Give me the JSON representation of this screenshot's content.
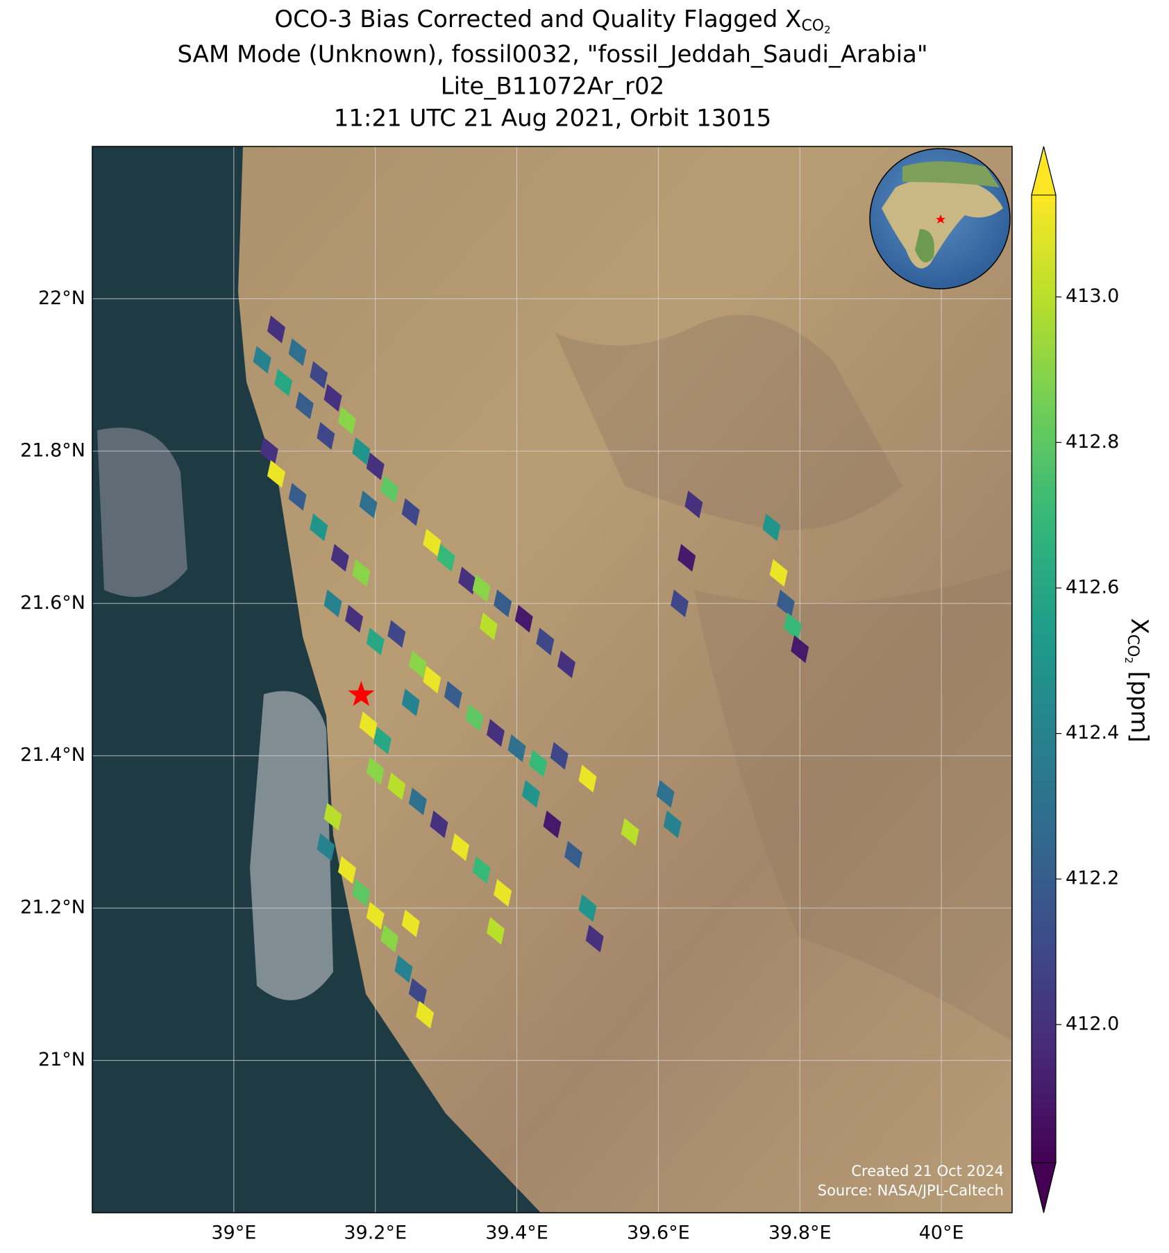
{
  "chart_data": {
    "type": "map",
    "title": [
      "OCO-3 Bias Corrected and Quality Flagged X",
      "SAM Mode (Unknown), fossil0032, \"fossil_Jeddah_Saudi_Arabia\"",
      "Lite_B11072Ar_r02",
      "11:21 UTC 21 Aug 2021, Orbit 13015"
    ],
    "title_subscript": [
      "CO",
      "2"
    ],
    "xlim": [
      38.8,
      40.1
    ],
    "ylim": [
      20.8,
      22.2
    ],
    "xticks": [
      {
        "value": 39,
        "label": "39°E"
      },
      {
        "value": 39.2,
        "label": "39.2°E"
      },
      {
        "value": 39.4,
        "label": "39.4°E"
      },
      {
        "value": 39.6,
        "label": "39.6°E"
      },
      {
        "value": 39.8,
        "label": "39.8°E"
      },
      {
        "value": 40,
        "label": "40°E"
      }
    ],
    "yticks": [
      {
        "value": 21,
        "label": "21°N"
      },
      {
        "value": 21.2,
        "label": "21.2°N"
      },
      {
        "value": 21.4,
        "label": "21.4°N"
      },
      {
        "value": 21.6,
        "label": "21.6°N"
      },
      {
        "value": 21.8,
        "label": "21.8°N"
      },
      {
        "value": 22,
        "label": "22°N"
      }
    ],
    "grid": true,
    "colormap": "viridis",
    "clim": [
      411.81,
      413.14
    ],
    "cticks": [
      {
        "value": 412,
        "label": "412.0"
      },
      412.2,
      412.4,
      412.6,
      412.8,
      {
        "value": 413,
        "label": "413.0"
      }
    ],
    "colorbar_label": [
      "X",
      "CO",
      "2",
      " [ppm]"
    ],
    "site": {
      "lon": 39.18,
      "lat": 21.48,
      "color": "#ff0000"
    },
    "annotations": [
      "Created 21 Oct 2024",
      "Source: NASA/JPL-Caltech"
    ],
    "soundings": {
      "lon": [
        39.06,
        39.09,
        39.12,
        39.04,
        39.07,
        39.1,
        39.14,
        39.16,
        39.13,
        39.18,
        39.2,
        39.22,
        39.19,
        39.25,
        39.28,
        39.3,
        39.33,
        39.35,
        39.38,
        39.36,
        39.41,
        39.44,
        39.47,
        39.05,
        39.06,
        39.09,
        39.12,
        39.15,
        39.18,
        39.14,
        39.17,
        39.2,
        39.23,
        39.26,
        39.28,
        39.31,
        39.25,
        39.34,
        39.37,
        39.4,
        39.43,
        39.46,
        39.42,
        39.45,
        39.48,
        39.5,
        39.51,
        39.19,
        39.21,
        39.2,
        39.23,
        39.26,
        39.29,
        39.32,
        39.35,
        39.38,
        39.37,
        39.14,
        39.13,
        39.16,
        39.18,
        39.2,
        39.22,
        39.24,
        39.26,
        39.27,
        39.25,
        39.65,
        39.64,
        39.63,
        39.76,
        39.77,
        39.78,
        39.79,
        39.8,
        39.5,
        39.56,
        39.61,
        39.62
      ],
      "lat": [
        21.96,
        21.93,
        21.9,
        21.92,
        21.89,
        21.86,
        21.87,
        21.84,
        21.82,
        21.8,
        21.78,
        21.75,
        21.73,
        21.72,
        21.68,
        21.66,
        21.63,
        21.62,
        21.6,
        21.57,
        21.58,
        21.55,
        21.52,
        21.8,
        21.77,
        21.74,
        21.7,
        21.66,
        21.64,
        21.6,
        21.58,
        21.55,
        21.56,
        21.52,
        21.5,
        21.48,
        21.47,
        21.45,
        21.43,
        21.41,
        21.39,
        21.4,
        21.35,
        21.31,
        21.27,
        21.2,
        21.16,
        21.44,
        21.42,
        21.38,
        21.36,
        21.34,
        21.31,
        21.28,
        21.25,
        21.22,
        21.17,
        21.32,
        21.28,
        21.25,
        21.22,
        21.19,
        21.16,
        21.12,
        21.09,
        21.06,
        21.18,
        21.73,
        21.66,
        21.6,
        21.7,
        21.64,
        21.6,
        21.57,
        21.54,
        21.37,
        21.3,
        21.35,
        21.31
      ],
      "xco2": [
        412.0,
        412.3,
        412.1,
        412.4,
        412.6,
        412.2,
        412.0,
        412.9,
        412.1,
        412.5,
        412.0,
        412.8,
        412.3,
        412.1,
        413.1,
        412.7,
        412.0,
        412.9,
        412.2,
        413.0,
        411.9,
        412.1,
        412.0,
        412.0,
        413.1,
        412.2,
        412.5,
        412.0,
        412.9,
        412.4,
        412.0,
        412.6,
        412.1,
        412.9,
        413.1,
        412.2,
        412.4,
        412.8,
        412.0,
        412.3,
        412.7,
        412.1,
        412.5,
        411.9,
        412.2,
        412.5,
        412.0,
        413.1,
        412.6,
        412.9,
        413.0,
        412.3,
        412.0,
        413.1,
        412.7,
        413.1,
        413.0,
        413.0,
        412.4,
        413.1,
        412.8,
        413.1,
        412.9,
        412.4,
        412.1,
        413.1,
        413.1,
        412.0,
        411.9,
        412.1,
        412.5,
        413.1,
        412.2,
        412.7,
        411.9,
        413.1,
        413.0,
        412.3,
        412.4
      ]
    }
  }
}
